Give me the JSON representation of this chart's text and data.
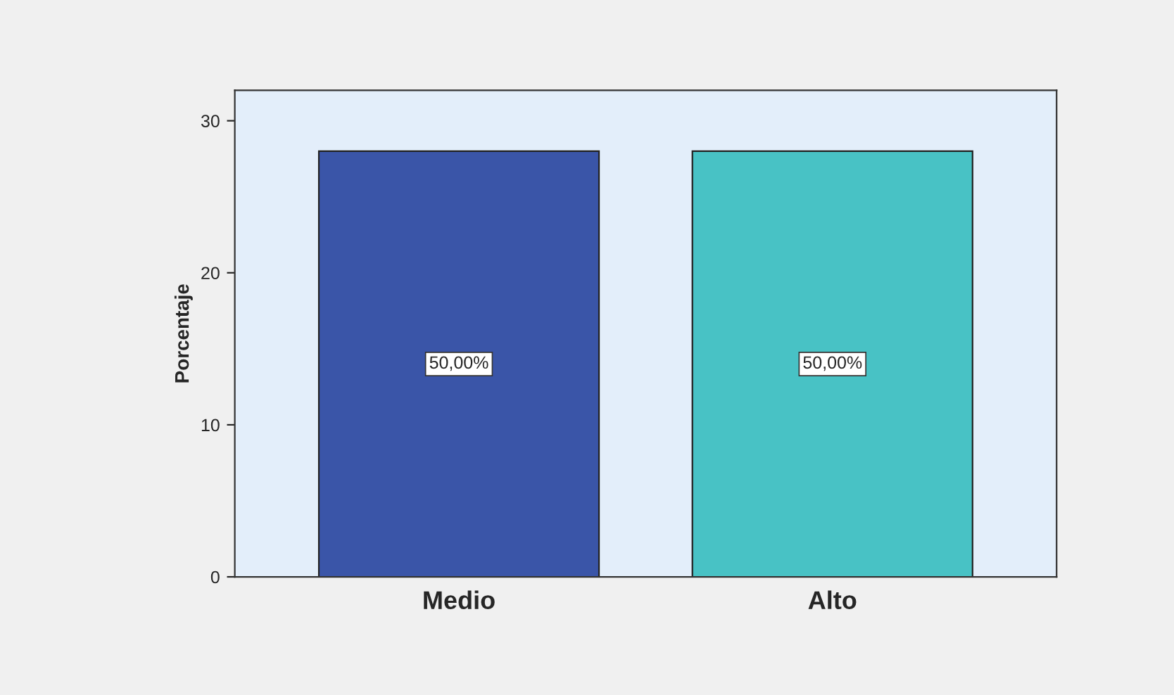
{
  "chart_data": {
    "type": "bar",
    "ylabel": "Porcentaje",
    "categories": [
      "Medio",
      "Alto"
    ],
    "values": [
      28,
      28
    ],
    "colors": [
      "#3a55a8",
      "#48c2c5"
    ],
    "annotations": [
      "50,00%",
      "50,00%"
    ],
    "ylim": [
      0,
      32
    ],
    "yticks": [
      0,
      10,
      20,
      30
    ],
    "grid": false
  }
}
